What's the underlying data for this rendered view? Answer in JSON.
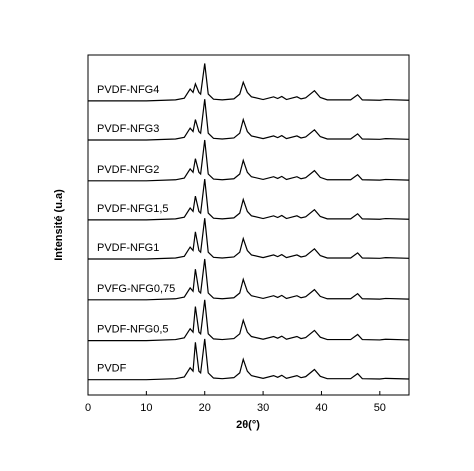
{
  "chart_data": {
    "type": "line",
    "xlabel": "2θ(°)",
    "ylabel": "Intensité (u.a)",
    "xlim": [
      0,
      55
    ],
    "xticks": [
      0,
      10,
      20,
      30,
      40,
      50
    ],
    "ylim": [
      0,
      100
    ],
    "x": [
      0,
      5,
      10,
      15,
      16.5,
      17.5,
      18.0,
      18.4,
      19.0,
      19.3,
      20.0,
      20.6,
      21.5,
      23,
      25,
      26.0,
      26.6,
      27.3,
      28,
      30,
      31.8,
      32.5,
      33.2,
      34,
      35.8,
      36.5,
      37.3,
      38.8,
      39.8,
      41,
      45,
      46.2,
      47,
      50,
      51,
      55
    ],
    "series": [
      {
        "name": "PVDF",
        "color": "#000000",
        "values": [
          4.5,
          4.5,
          4.5,
          4.8,
          5.3,
          8,
          7,
          15.5,
          7,
          6.5,
          16.5,
          6.5,
          5,
          4.8,
          5.1,
          6.5,
          10.5,
          7,
          5.7,
          4.9,
          5.7,
          5.2,
          5.8,
          4.9,
          5.7,
          5.1,
          5.4,
          7.5,
          5.5,
          4.8,
          4.8,
          6.3,
          4.8,
          4.7,
          4.9,
          4.7
        ]
      },
      {
        "name": "PVDF-NFG0,5",
        "color": "#000000",
        "values": [
          16,
          16,
          16,
          16.3,
          16.8,
          19.5,
          18.5,
          26,
          18.5,
          18,
          28,
          18,
          16.5,
          16.3,
          16.6,
          18,
          22,
          18.5,
          17.2,
          16.4,
          17.2,
          16.7,
          17.3,
          16.4,
          17.2,
          16.6,
          16.9,
          19,
          17,
          16.3,
          16.3,
          17.8,
          16.3,
          16.2,
          16.4,
          16.2
        ]
      },
      {
        "name": "PVFG-NFG0,75",
        "color": "#000000",
        "values": [
          28,
          28,
          28,
          28.3,
          28.8,
          31.5,
          30.5,
          37,
          30.5,
          30,
          40,
          30,
          28.5,
          28.3,
          28.6,
          30,
          34,
          30.5,
          29.2,
          28.4,
          29.2,
          28.7,
          29.3,
          28.4,
          29.2,
          28.6,
          28.9,
          31,
          29,
          28.3,
          28.3,
          29.8,
          28.3,
          28.2,
          28.4,
          28.2
        ]
      },
      {
        "name": "PVDF-NFG1",
        "color": "#000000",
        "values": [
          40,
          40,
          40,
          40.3,
          40.8,
          43.5,
          42.5,
          48,
          42.5,
          42,
          52,
          42,
          40.5,
          40.3,
          40.6,
          42,
          46,
          42.5,
          41.2,
          40.4,
          41.2,
          40.7,
          41.3,
          40.4,
          41.2,
          40.6,
          40.9,
          43,
          41,
          40.3,
          40.3,
          41.8,
          40.3,
          40.2,
          40.4,
          40.2
        ]
      },
      {
        "name": "PVDF-NFG1,5",
        "color": "#000000",
        "values": [
          51.5,
          51.5,
          51.5,
          51.8,
          52.3,
          55,
          54,
          58.5,
          54,
          53.5,
          63.5,
          53.5,
          52,
          51.8,
          52.1,
          53.5,
          57.5,
          54,
          52.7,
          51.9,
          52.7,
          52.2,
          52.8,
          51.9,
          52.7,
          52.1,
          52.4,
          54.5,
          52.5,
          51.8,
          51.8,
          53.3,
          51.8,
          51.7,
          51.9,
          51.7
        ]
      },
      {
        "name": "PVDF-NFG2",
        "color": "#000000",
        "values": [
          63,
          63,
          63,
          63.3,
          63.8,
          66.5,
          65.5,
          69.5,
          65.5,
          65,
          75,
          65,
          63.5,
          63.3,
          63.6,
          65,
          69,
          65.5,
          64.2,
          63.4,
          64.2,
          63.7,
          64.3,
          63.4,
          64.2,
          63.6,
          63.9,
          66,
          64,
          63.3,
          63.3,
          64.8,
          63.3,
          63.2,
          63.4,
          63.2
        ]
      },
      {
        "name": "PVDF-NFG3",
        "color": "#000000",
        "values": [
          75,
          75,
          75,
          75.3,
          75.8,
          78.5,
          77.5,
          81,
          77.5,
          77,
          87,
          77,
          75.5,
          75.3,
          75.6,
          77,
          81,
          77.5,
          76.2,
          75.4,
          76.2,
          75.7,
          76.3,
          75.4,
          76.2,
          75.6,
          75.9,
          78,
          76,
          75.3,
          75.3,
          76.8,
          75.3,
          75.2,
          75.4,
          75.2
        ]
      },
      {
        "name": "PVDF-NFG4",
        "color": "#000000",
        "values": [
          86.5,
          86.5,
          86.5,
          86.8,
          87.3,
          90,
          89,
          91.5,
          89,
          88.5,
          97.5,
          88.5,
          87,
          86.8,
          87.1,
          88.5,
          92,
          89,
          87.7,
          86.9,
          87.7,
          87.2,
          87.8,
          86.9,
          87.7,
          87.1,
          87.4,
          89.5,
          87.5,
          86.8,
          86.8,
          88.3,
          86.8,
          86.7,
          86.9,
          86.7
        ]
      }
    ]
  }
}
